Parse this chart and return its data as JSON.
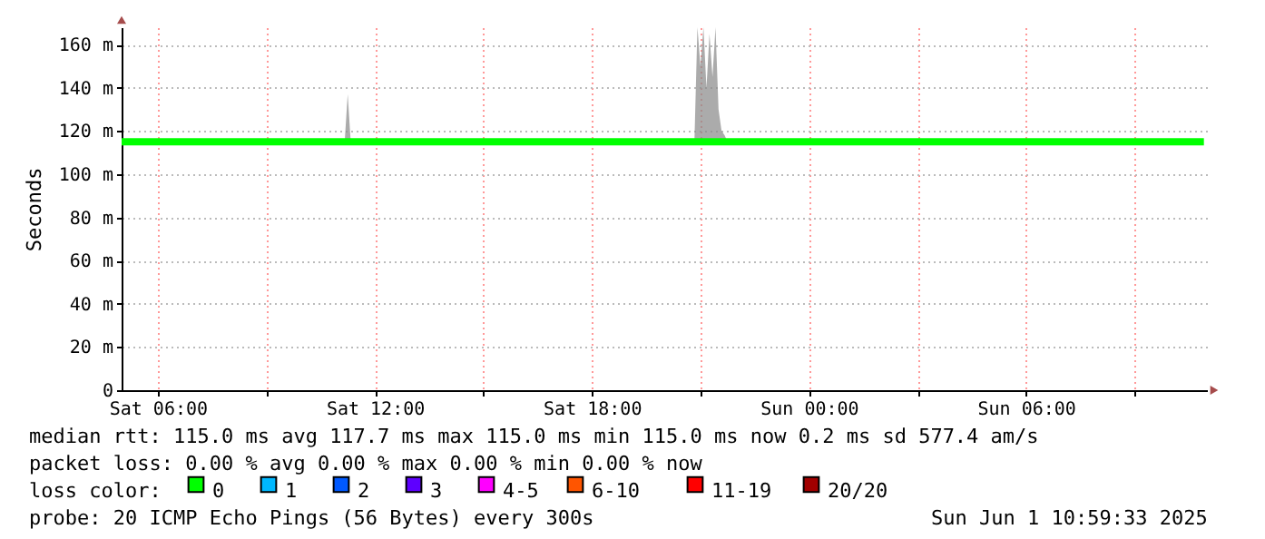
{
  "chart_data": {
    "type": "line",
    "ylabel": "Seconds",
    "x": [
      "2025-05-31T05:00",
      "2025-05-31T11:10",
      "2025-05-31T11:15",
      "2025-05-31T11:20",
      "2025-05-31T20:50",
      "2025-05-31T20:55",
      "2025-05-31T21:00",
      "2025-05-31T21:05",
      "2025-05-31T21:10",
      "2025-05-31T21:15",
      "2025-05-31T21:20",
      "2025-05-31T21:25",
      "2025-05-31T21:30",
      "2025-05-31T21:35",
      "2025-05-31T21:40",
      "2025-05-31T21:45",
      "2025-06-01T10:55"
    ],
    "series": [
      {
        "color": "#00ff00",
        "values": [
          115,
          115,
          115,
          115,
          115,
          115,
          115,
          115,
          115,
          115,
          115,
          115,
          115,
          115,
          115,
          115,
          115
        ],
        "lower": [
          115,
          115,
          115,
          115,
          115,
          115,
          115,
          115,
          115,
          115,
          115,
          115,
          115,
          115,
          115,
          115,
          115
        ],
        "upper": [
          115,
          115,
          137,
          115,
          115,
          168,
          150,
          168,
          140,
          165,
          145,
          168,
          130,
          120,
          118,
          115,
          115
        ]
      }
    ],
    "xlim": [
      "2025-05-31T05:00",
      "2025-06-01T11:00"
    ],
    "xticks": [
      {
        "value": "2025-05-31T06:00",
        "label": "Sat 06:00"
      },
      {
        "value": "2025-05-31T09:00",
        "label": null
      },
      {
        "value": "2025-05-31T12:00",
        "label": "Sat 12:00"
      },
      {
        "value": "2025-05-31T15:00",
        "label": null
      },
      {
        "value": "2025-05-31T18:00",
        "label": "Sat 18:00"
      },
      {
        "value": "2025-05-31T21:00",
        "label": null
      },
      {
        "value": "2025-06-01T00:00",
        "label": "Sun 00:00"
      },
      {
        "value": "2025-06-01T03:00",
        "label": null
      },
      {
        "value": "2025-06-01T06:00",
        "label": "Sun 06:00"
      },
      {
        "value": "2025-06-01T09:00",
        "label": null
      }
    ],
    "ylim": [
      0,
      168
    ],
    "yticks": [
      0,
      {
        "value": 20,
        "label": "20 m"
      },
      {
        "value": 40,
        "label": "40 m"
      },
      {
        "value": 60,
        "label": "60 m"
      },
      {
        "value": 80,
        "label": "80 m"
      },
      {
        "value": 100,
        "label": "100 m"
      },
      {
        "value": 120,
        "label": "120 m"
      },
      {
        "value": 140,
        "label": "140 m"
      },
      {
        "value": 160,
        "label": "160 m"
      }
    ],
    "grid": true,
    "annotations": [
      "median rtt:  115.0 ms avg  117.7 ms max  115.0 ms min  115.0 ms now  0.2 ms sd  577.4   am/s",
      "packet loss: 0.00 % avg  0.00 % max  0.00 % min  0.00 % now",
      "loss color:",
      "0",
      "1",
      "2",
      "3",
      "4-5",
      "6-10",
      "11-19",
      "20/20",
      "probe:       20 ICMP Echo Pings (56 Bytes) every 300s",
      "Sun Jun  1 10:59:33 2025"
    ]
  }
}
